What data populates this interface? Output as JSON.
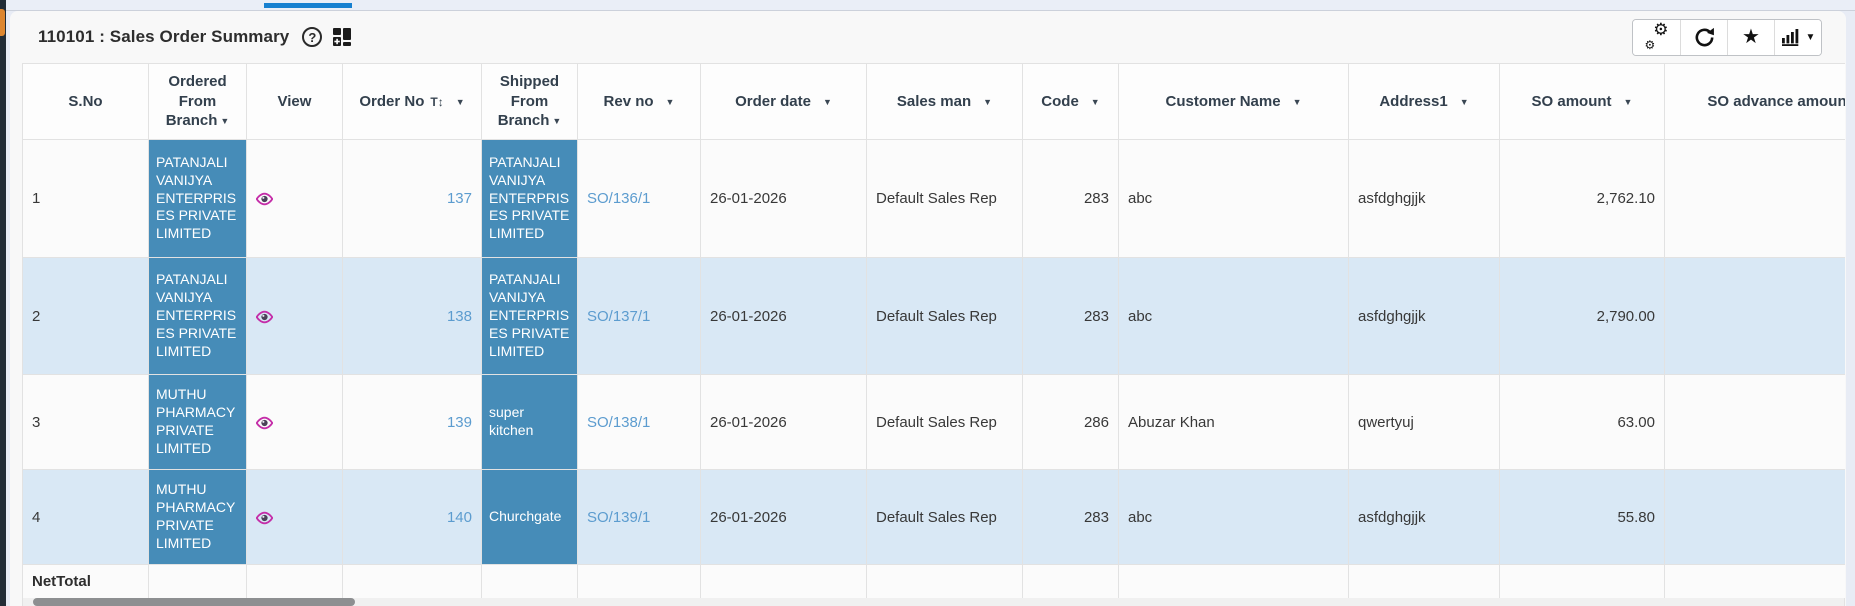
{
  "header": {
    "title": "110101 : Sales Order Summary",
    "help_icon_glyph": "?",
    "toolbar": {
      "buttons": [
        {
          "name": "settings",
          "icon": "gears-icon"
        },
        {
          "name": "refresh",
          "icon": "refresh-icon"
        },
        {
          "name": "favorite",
          "icon": "star-icon"
        },
        {
          "name": "chart-view",
          "icon": "bar-chart-icon",
          "has_dropdown": true
        }
      ]
    }
  },
  "table": {
    "columns": [
      {
        "key": "sno",
        "label": "S.No",
        "variant": "text",
        "align": "left",
        "caret": false
      },
      {
        "key": "ordered_from",
        "label": "Ordered From Branch",
        "variant": "branch",
        "align": "left",
        "caret": true,
        "caret_inline": true
      },
      {
        "key": "view",
        "label": "View",
        "variant": "eye",
        "align": "left",
        "caret": false
      },
      {
        "key": "order_no",
        "label": "Order No",
        "variant": "link",
        "align": "right",
        "caret": true,
        "text_sort": true
      },
      {
        "key": "shipped_from",
        "label": "Shipped From Branch",
        "variant": "branch",
        "align": "left",
        "caret": true,
        "caret_inline": true
      },
      {
        "key": "rev_no",
        "label": "Rev no",
        "variant": "link",
        "align": "left",
        "caret": true
      },
      {
        "key": "order_date",
        "label": "Order date",
        "variant": "text",
        "align": "left",
        "caret": true
      },
      {
        "key": "sales_man",
        "label": "Sales man",
        "variant": "text",
        "align": "left",
        "caret": true
      },
      {
        "key": "code",
        "label": "Code",
        "variant": "text",
        "align": "right",
        "caret": true
      },
      {
        "key": "customer",
        "label": "Customer Name",
        "variant": "text",
        "align": "left",
        "caret": true
      },
      {
        "key": "address1",
        "label": "Address1",
        "variant": "text",
        "align": "left",
        "caret": true
      },
      {
        "key": "so_amount",
        "label": "SO amount",
        "variant": "text",
        "align": "right",
        "caret": true
      },
      {
        "key": "so_advance",
        "label": "SO advance amount",
        "variant": "text",
        "align": "right",
        "caret": false
      }
    ],
    "rows": [
      {
        "sno": "1",
        "ordered_from": "PATANJALI VANIJYA ENTERPRISES PRIVATE LIMITED",
        "order_no": "137",
        "shipped_from": "PATANJALI VANIJYA ENTERPRISES PRIVATE LIMITED",
        "rev_no": "SO/136/1",
        "order_date": "26-01-2026",
        "sales_man": "Default Sales Rep",
        "code": "283",
        "customer": "abc",
        "address1": "asfdghgjjk",
        "so_amount": "2,762.10",
        "so_advance": ""
      },
      {
        "sno": "2",
        "ordered_from": "PATANJALI VANIJYA ENTERPRISES PRIVATE LIMITED",
        "order_no": "138",
        "shipped_from": "PATANJALI VANIJYA ENTERPRISES PRIVATE LIMITED",
        "rev_no": "SO/137/1",
        "order_date": "26-01-2026",
        "sales_man": "Default Sales Rep",
        "code": "283",
        "customer": "abc",
        "address1": "asfdghgjjk",
        "so_amount": "2,790.00",
        "so_advance": ""
      },
      {
        "sno": "3",
        "ordered_from": "MUTHU PHARMACY PRIVATE LIMITED",
        "order_no": "139",
        "shipped_from": "super kitchen",
        "rev_no": "SO/138/1",
        "order_date": "26-01-2026",
        "sales_man": "Default Sales Rep",
        "code": "286",
        "customer": "Abuzar Khan",
        "address1": "qwertyuj",
        "so_amount": "63.00",
        "so_advance": ""
      },
      {
        "sno": "4",
        "ordered_from": "MUTHU PHARMACY PRIVATE LIMITED",
        "order_no": "140",
        "shipped_from": "Churchgate",
        "rev_no": "SO/139/1",
        "order_date": "26-01-2026",
        "sales_man": "Default Sales Rep",
        "code": "283",
        "customer": "abc",
        "address1": "asfdghgjjk",
        "so_amount": "55.80",
        "so_advance": ""
      }
    ],
    "net_total_label": "NetTotal"
  },
  "colors": {
    "branch_cell_bg": "#468cb8",
    "stripe_row_bg": "#d9e8f5",
    "link_text": "#5c9ccf",
    "top_indicator": "#1780d0",
    "accent_orange": "#dd8630"
  }
}
